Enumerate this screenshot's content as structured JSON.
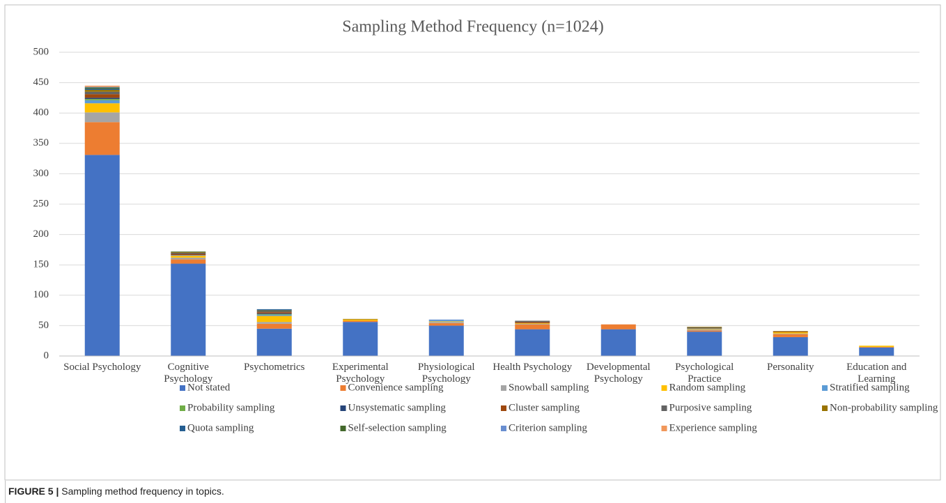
{
  "chart_data": {
    "type": "stacked_bar",
    "title": "Sampling Method Frequency (n=1024)",
    "categories": [
      "Social Psychology",
      "Cognitive Psychology",
      "Psychometrics",
      "Experimental Psychology",
      "Physiological Psychology",
      "Health Psychology",
      "Developmental Psychology",
      "Psychological Practice",
      "Personality",
      "Education and Learning"
    ],
    "series": [
      {
        "name": "Not stated",
        "color": "#4472c4",
        "values": [
          331,
          152,
          45,
          56,
          50,
          44,
          44,
          40,
          31,
          14
        ]
      },
      {
        "name": "Convenience sampling",
        "color": "#ed7d31",
        "values": [
          54,
          7,
          8,
          2,
          4,
          8,
          8,
          2,
          5,
          1
        ]
      },
      {
        "name": "Snowball sampling",
        "color": "#a5a5a5",
        "values": [
          16,
          3,
          3,
          0,
          2,
          1,
          0,
          2,
          1,
          0
        ]
      },
      {
        "name": "Random sampling",
        "color": "#ffc000",
        "values": [
          15,
          3,
          10,
          2,
          1,
          1,
          0,
          1,
          2,
          2
        ]
      },
      {
        "name": "Stratified sampling",
        "color": "#5b9bd5",
        "values": [
          5,
          1,
          2,
          0,
          2,
          0,
          0,
          0,
          0,
          0
        ]
      },
      {
        "name": "Probability sampling",
        "color": "#70ad47",
        "values": [
          2,
          0,
          1,
          0,
          0,
          0,
          0,
          0,
          0,
          0
        ]
      },
      {
        "name": "Unsystematic sampling",
        "color": "#264478",
        "values": [
          2,
          0,
          1,
          0,
          0,
          0,
          0,
          0,
          0,
          0
        ]
      },
      {
        "name": "Cluster sampling",
        "color": "#9e480e",
        "values": [
          6,
          2,
          2,
          0,
          0,
          2,
          0,
          0,
          1,
          0
        ]
      },
      {
        "name": "Purposive sampling",
        "color": "#636363",
        "values": [
          4,
          2,
          2,
          0,
          0,
          2,
          0,
          2,
          0,
          0
        ]
      },
      {
        "name": "Non-probability sampling",
        "color": "#997300",
        "values": [
          3,
          1,
          1,
          1,
          0,
          0,
          0,
          1,
          1,
          0
        ]
      },
      {
        "name": "Quota sampling",
        "color": "#255e91",
        "values": [
          2,
          0,
          2,
          0,
          0,
          0,
          0,
          0,
          0,
          0
        ]
      },
      {
        "name": "Self-selection sampling",
        "color": "#43682b",
        "values": [
          2,
          1,
          0,
          0,
          0,
          0,
          0,
          0,
          0,
          0
        ]
      },
      {
        "name": "Criterion sampling",
        "color": "#698ed0",
        "values": [
          1,
          0,
          0,
          0,
          1,
          0,
          0,
          0,
          0,
          0
        ]
      },
      {
        "name": "Experience sampling",
        "color": "#f1975a",
        "values": [
          2,
          0,
          0,
          0,
          0,
          0,
          0,
          0,
          0,
          0
        ]
      }
    ],
    "ylim": [
      0,
      500
    ],
    "yticks": [
      0,
      50,
      100,
      150,
      200,
      250,
      300,
      350,
      400,
      450,
      500
    ],
    "grid": true,
    "legend": "bottom"
  },
  "caption_label": "FIGURE 5 |",
  "caption": "Sampling method frequency in topics."
}
